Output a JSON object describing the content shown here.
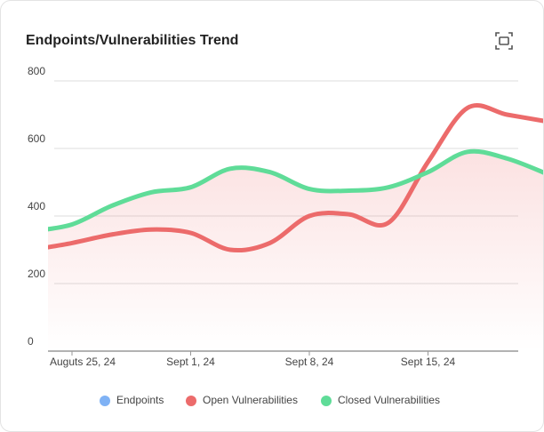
{
  "chart_data": {
    "type": "area",
    "title": "Endpoints/Vulnerabilities Trend",
    "categories": [
      null,
      "Auguts 25, 24",
      null,
      null,
      "Sept 1, 24",
      null,
      null,
      "Sept 8, 24",
      null,
      null,
      "Sept 15, 24",
      null,
      null,
      null
    ],
    "series": [
      {
        "name": "Endpoints",
        "color": "#7fb2f5",
        "values": [
          null,
          null,
          null,
          null,
          null,
          null,
          null,
          null,
          null,
          null,
          null,
          null,
          null,
          null
        ]
      },
      {
        "name": "Open Vulnerabilities",
        "color": "#ec6b6b",
        "values": [
          300,
          320,
          345,
          360,
          350,
          300,
          320,
          400,
          405,
          380,
          560,
          720,
          700,
          680
        ]
      },
      {
        "name": "Closed Vulnerabilities",
        "color": "#5fdc98",
        "values": [
          355,
          375,
          430,
          470,
          485,
          540,
          530,
          480,
          475,
          485,
          530,
          590,
          570,
          525
        ]
      }
    ],
    "ylim": [
      0,
      800
    ],
    "yticks": [
      0,
      200,
      400,
      600,
      800
    ],
    "grid": true
  }
}
